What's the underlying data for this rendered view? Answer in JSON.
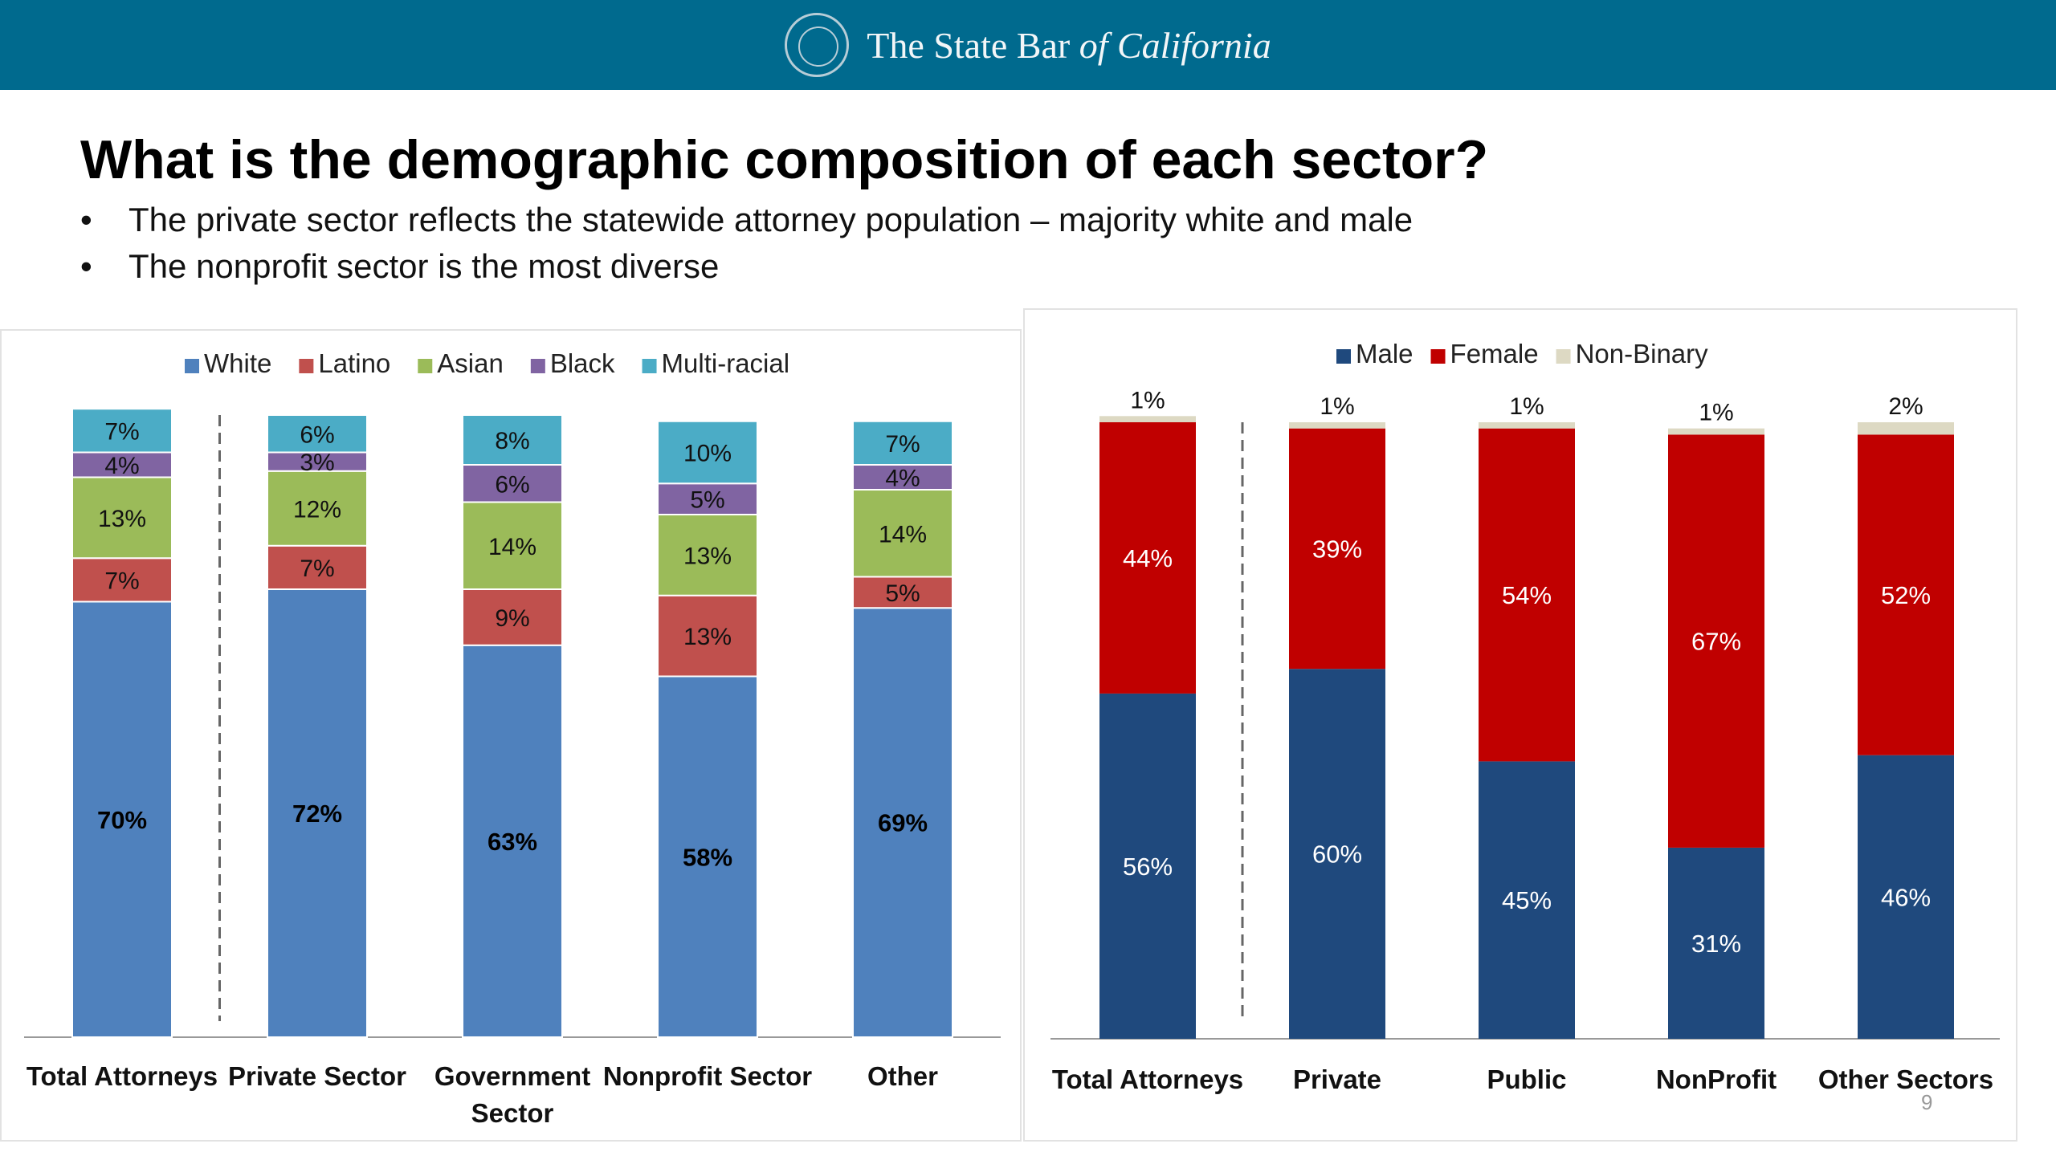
{
  "header": {
    "brand_prefix": "The State Bar ",
    "brand_italic": "of California"
  },
  "slide": {
    "title": "What is the demographic composition of each sector?",
    "bullets": [
      "The private sector reflects the statewide attorney population – majority white and male",
      "The nonprofit sector is the most diverse"
    ],
    "page_number": "9"
  },
  "colors": {
    "header_bg": "#006a8e",
    "White": "#4f81bd",
    "Latino": "#c0504d",
    "Asian": "#9bbb59",
    "Black": "#8064a2",
    "Multi-racial": "#4bacc6",
    "Male": "#1f497d",
    "Female": "#c00000",
    "Non-Binary": "#ddd9c3"
  },
  "chart_data": [
    {
      "type": "bar",
      "stacked": true,
      "categories": [
        "Total Attorneys",
        "Private Sector",
        "Government Sector",
        "Nonprofit Sector",
        "Other"
      ],
      "legend_position": "top",
      "divider_after_first": true,
      "series": [
        {
          "name": "White",
          "values": [
            70,
            72,
            63,
            58,
            69
          ],
          "labels": [
            "70%",
            "72%",
            "63%",
            "58%",
            "69%"
          ]
        },
        {
          "name": "Latino",
          "values": [
            7,
            7,
            9,
            13,
            5
          ],
          "labels": [
            "7%",
            "7%",
            "9%",
            "13%",
            "5%"
          ]
        },
        {
          "name": "Asian",
          "values": [
            13,
            12,
            14,
            13,
            14
          ],
          "labels": [
            "13%",
            "12%",
            "14%",
            "13%",
            "14%"
          ]
        },
        {
          "name": "Black",
          "values": [
            4,
            3,
            6,
            5,
            4
          ],
          "labels": [
            "4%",
            "3%",
            "6%",
            "5%",
            "4%"
          ]
        },
        {
          "name": "Multi-racial",
          "values": [
            7,
            6,
            8,
            10,
            7
          ],
          "labels": [
            "7%",
            "6%",
            "8%",
            "10%",
            "7%"
          ]
        }
      ]
    },
    {
      "type": "bar",
      "stacked": true,
      "categories": [
        "Total Attorneys",
        "Private",
        "Public",
        "NonProfit",
        "Other Sectors"
      ],
      "legend_position": "top",
      "divider_after_first": true,
      "series": [
        {
          "name": "Male",
          "values": [
            56,
            60,
            45,
            31,
            46
          ],
          "labels": [
            "56%",
            "60%",
            "45%",
            "31%",
            "46%"
          ]
        },
        {
          "name": "Female",
          "values": [
            44,
            39,
            54,
            67,
            52
          ],
          "labels": [
            "44%",
            "39%",
            "54%",
            "67%",
            "52%"
          ]
        },
        {
          "name": "Non-Binary",
          "values": [
            1,
            1,
            1,
            1,
            2
          ],
          "labels": [
            "1%",
            "1%",
            "1%",
            "1%",
            "2%"
          ]
        }
      ]
    }
  ]
}
